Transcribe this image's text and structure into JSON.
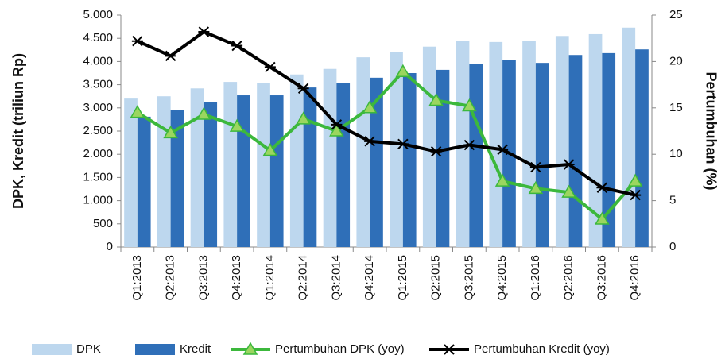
{
  "chart_data": {
    "type": "bar_line",
    "categories": [
      "Q1:2013",
      "Q2:2013",
      "Q3:2013",
      "Q4:2013",
      "Q1:2014",
      "Q2:2014",
      "Q3:2014",
      "Q4:2014",
      "Q1:2015",
      "Q2:2015",
      "Q3:2015",
      "Q4:2015",
      "Q1:2016",
      "Q2:2016",
      "Q3:2016",
      "Q4:2016"
    ],
    "series": [
      {
        "name": "DPK",
        "type": "bar",
        "color": "#bdd7ee",
        "values": [
          3200,
          3250,
          3420,
          3560,
          3530,
          3720,
          3840,
          4090,
          4200,
          4320,
          4450,
          4420,
          4450,
          4550,
          4590,
          4730
        ]
      },
      {
        "name": "Kredit",
        "type": "bar",
        "color": "#2f6fb8",
        "values": [
          2810,
          2950,
          3120,
          3270,
          3270,
          3440,
          3540,
          3650,
          3750,
          3820,
          3940,
          4040,
          3970,
          4140,
          4180,
          4260
        ]
      },
      {
        "name": "Pertumbuhan DPK (yoy)",
        "type": "line",
        "axis": "y2",
        "color": "#3cb83c",
        "marker": "triangle",
        "values": [
          14.5,
          12.3,
          14.3,
          13.0,
          10.4,
          13.8,
          12.5,
          15.0,
          18.9,
          15.8,
          15.2,
          7.1,
          6.3,
          5.9,
          3.0,
          7.1
        ]
      },
      {
        "name": "Pertumbuhan Kredit (yoy)",
        "type": "line",
        "axis": "y2",
        "color": "#000000",
        "marker": "star",
        "values": [
          22.2,
          20.6,
          23.2,
          21.7,
          19.4,
          17.1,
          13.2,
          11.4,
          11.1,
          10.3,
          11.0,
          10.5,
          8.6,
          8.9,
          6.4,
          5.6
        ]
      }
    ],
    "ylabel": "DPK, Kredit (triliun Rp)",
    "y2label": "Pertumbuhan (%)",
    "ylim": [
      0,
      5000
    ],
    "yticks": [
      {
        "value": 5000,
        "label": "5.000"
      },
      {
        "value": 4500,
        "label": "4.500"
      },
      {
        "value": 4000,
        "label": "4.000"
      },
      {
        "value": 3500,
        "label": "3.500"
      },
      {
        "value": 3000,
        "label": "3.000"
      },
      {
        "value": 2500,
        "label": "2.500"
      },
      {
        "value": 2000,
        "label": "2.000"
      },
      {
        "value": 1500,
        "label": "1.500"
      },
      {
        "value": 1000,
        "label": "1.000"
      },
      500,
      0
    ],
    "y2lim": [
      0,
      25
    ],
    "y2ticks": [
      25,
      20,
      15,
      10,
      5,
      0
    ],
    "grid": false,
    "legend": "bottom"
  }
}
